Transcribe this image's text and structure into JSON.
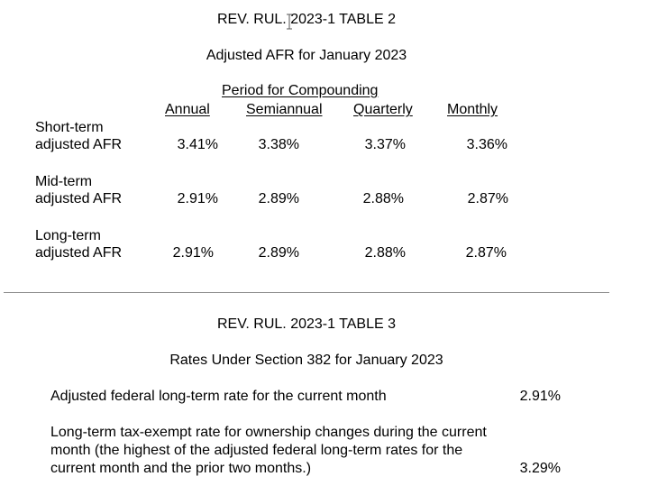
{
  "table2": {
    "title": "REV. RUL. 2023-1 TABLE 2",
    "subtitle": "Adjusted AFR for January 2023",
    "group_header": "Period for Compounding",
    "columns": [
      "Annual",
      "Semiannual",
      "Quarterly",
      "Monthly"
    ],
    "rows": [
      {
        "label_line1": "Short-term",
        "label_line2": "adjusted AFR",
        "values": [
          "3.41%",
          "3.38%",
          "3.37%",
          "3.36%"
        ]
      },
      {
        "label_line1": "Mid-term",
        "label_line2": "adjusted AFR",
        "values": [
          "2.91%",
          "2.89%",
          "2.88%",
          "2.87%"
        ]
      },
      {
        "label_line1": "Long-term",
        "label_line2": "adjusted AFR",
        "values": [
          "2.91%",
          "2.89%",
          "2.88%",
          "2.87%"
        ]
      }
    ]
  },
  "table3": {
    "title": "REV. RUL. 2023-1 TABLE 3",
    "subtitle": "Rates Under Section 382 for January 2023",
    "items": [
      {
        "text": "Adjusted federal long-term rate for the current month",
        "value": "2.91%"
      },
      {
        "text": "Long-term tax-exempt rate for ownership changes during the current month (the highest of the adjusted federal long-term rates for the current month and the prior two months.)",
        "value": "3.29%"
      }
    ]
  }
}
